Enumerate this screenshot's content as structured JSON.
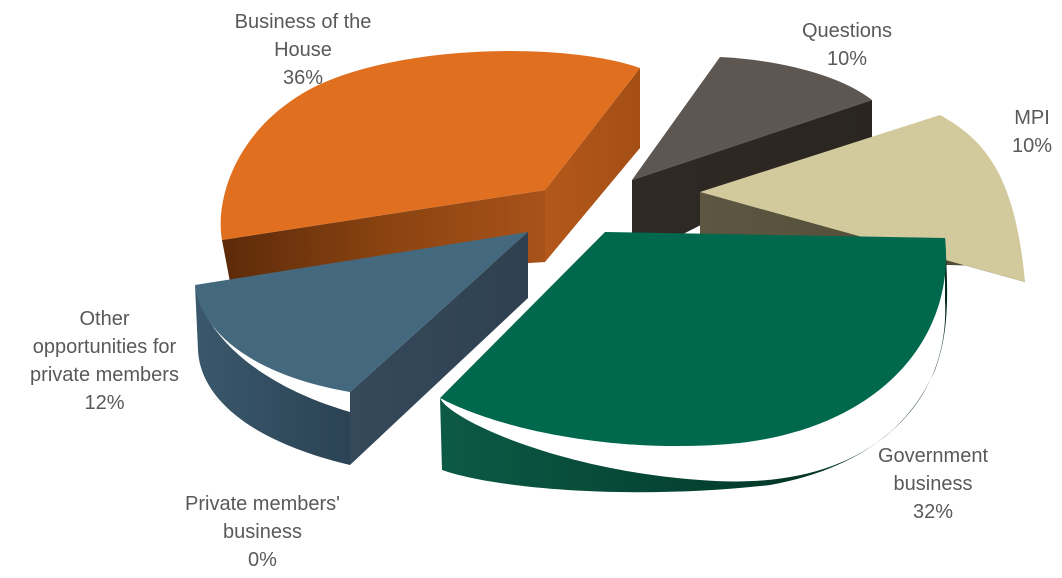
{
  "chart_data": {
    "type": "pie",
    "title": "",
    "style": "3d-exploded",
    "legend": "none",
    "slices": [
      {
        "label": "Business of the House",
        "label_lines": [
          "Business of the",
          "House"
        ],
        "percent_label": "36%",
        "value": 36,
        "color": "#E07020"
      },
      {
        "label": "Questions",
        "label_lines": [
          "Questions"
        ],
        "percent_label": "10%",
        "value": 10,
        "color": "#5E5650"
      },
      {
        "label": "MPI",
        "label_lines": [
          "MPI"
        ],
        "percent_label": "10%",
        "value": 10,
        "color": "#D2C99C"
      },
      {
        "label": "Government business",
        "label_lines": [
          "Government",
          "business"
        ],
        "percent_label": "32%",
        "value": 32,
        "color": "#00684C"
      },
      {
        "label": "Private members' business",
        "label_lines": [
          "Private members'",
          "business"
        ],
        "percent_label": "0%",
        "value": 0,
        "color": "#3F6379"
      },
      {
        "label": "Other opportunities for private members",
        "label_lines": [
          "Other",
          "opportunities for",
          "private members"
        ],
        "percent_label": "12%",
        "value": 12,
        "color": "#44687E"
      }
    ]
  }
}
